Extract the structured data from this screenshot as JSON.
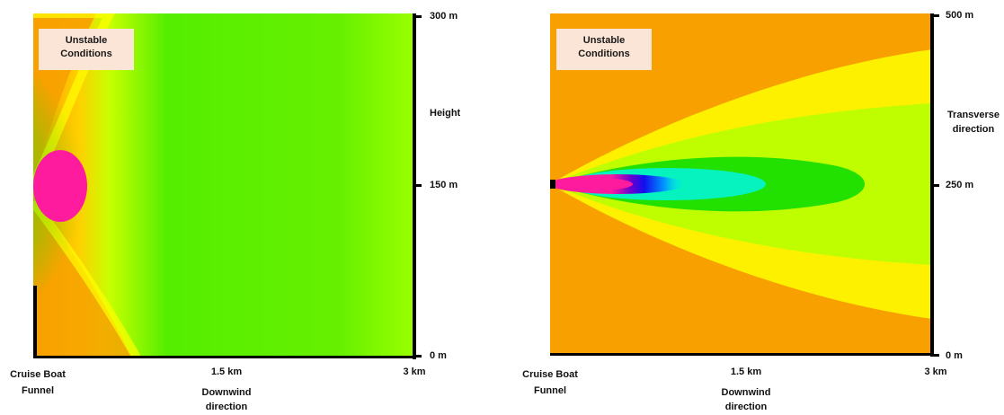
{
  "panels": [
    {
      "condition_label": "Unstable Conditions",
      "y_axis": {
        "title": "Height",
        "ticks": [
          "300 m",
          "150 m",
          "0 m"
        ]
      },
      "x_axis": {
        "title": "Downwind direction",
        "ticks": [
          "Cruise Boat Funnel",
          "1.5 km",
          "3 km"
        ]
      }
    },
    {
      "condition_label": "Unstable Conditions",
      "y_axis": {
        "title": "Transverse direction",
        "ticks": [
          "500 m",
          "250 m",
          "0 m"
        ]
      },
      "x_axis": {
        "title": "Downwind direction",
        "ticks": [
          "Cruise Boat Funnel",
          "1.5 km",
          "3 km"
        ]
      }
    }
  ],
  "colors": {
    "background": "#f7a000",
    "far_field": "#99ff00",
    "mid": "#22e000",
    "cyan": "#00f7f0",
    "blue": "#1111ee",
    "core": "#ff1b9d",
    "yellow": "#ffff00"
  }
}
